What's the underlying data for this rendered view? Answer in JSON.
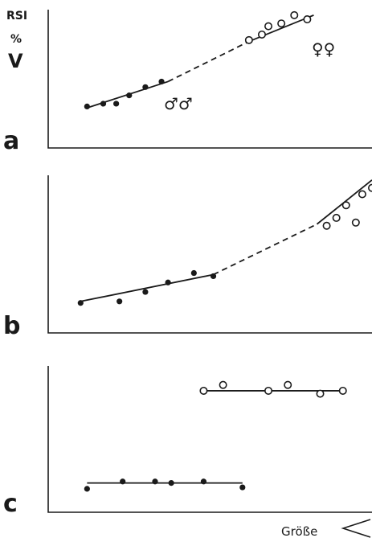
{
  "chart_data": [
    {
      "type": "scatter",
      "panel": "a",
      "ylabel": [
        "RSI",
        "%",
        "V"
      ],
      "xlim": [
        0,
        100
      ],
      "ylim": [
        0,
        100
      ],
      "series": [
        {
          "name": "♂♂",
          "marker": "filled",
          "x": [
            12,
            17,
            21,
            25,
            30,
            35
          ],
          "y": [
            30,
            32,
            32,
            38,
            44,
            48
          ]
        },
        {
          "name": "♀♀",
          "marker": "open",
          "x": [
            62,
            66,
            68,
            72,
            76,
            80
          ],
          "y": [
            78,
            82,
            88,
            90,
            96,
            93
          ]
        }
      ],
      "fit_solid": [
        [
          [
            12,
            29
          ],
          [
            37,
            48
          ]
        ],
        [
          [
            62,
            77
          ],
          [
            82,
            96
          ]
        ]
      ],
      "fit_dashed": [
        [
          37,
          48
        ],
        [
          62,
          77
        ]
      ]
    },
    {
      "type": "scatter",
      "panel": "b",
      "xlim": [
        0,
        100
      ],
      "ylim": [
        0,
        100
      ],
      "series": [
        {
          "name": "",
          "marker": "filled",
          "x": [
            10,
            22,
            30,
            37,
            45,
            51
          ],
          "y": [
            19,
            20,
            26,
            32,
            38,
            36
          ]
        },
        {
          "name": "",
          "marker": "open",
          "x": [
            86,
            89,
            92,
            95,
            97,
            100
          ],
          "y": [
            68,
            73,
            81,
            70,
            88,
            92
          ]
        }
      ],
      "fit_solid": [
        [
          [
            10,
            20
          ],
          [
            51,
            37
          ]
        ],
        [
          [
            83,
            69
          ],
          [
            100,
            97
          ]
        ]
      ],
      "fit_dashed": [
        [
          51,
          37
        ],
        [
          83,
          69
        ]
      ]
    },
    {
      "type": "scatter",
      "panel": "c",
      "xlim": [
        0,
        100
      ],
      "ylim": [
        0,
        100
      ],
      "series": [
        {
          "name": "",
          "marker": "filled",
          "x": [
            12,
            23,
            33,
            38,
            48,
            60
          ],
          "y": [
            16,
            21,
            21,
            20,
            21,
            17
          ]
        },
        {
          "name": "",
          "marker": "open",
          "x": [
            48,
            54,
            68,
            74,
            84,
            91
          ],
          "y": [
            83,
            87,
            83,
            87,
            81,
            83
          ]
        }
      ],
      "fit_solid": [
        [
          [
            12,
            20
          ],
          [
            60,
            20
          ]
        ],
        [
          [
            48,
            83
          ],
          [
            91,
            83
          ]
        ]
      ],
      "fit_dashed": []
    }
  ],
  "labels": {
    "panel_a": "a",
    "panel_b": "b",
    "panel_c": "c",
    "y_rsi": "RSI",
    "y_percent": "%",
    "y_v": "V",
    "males": "♂♂",
    "females": "♀♀",
    "x_label": "Größe"
  }
}
